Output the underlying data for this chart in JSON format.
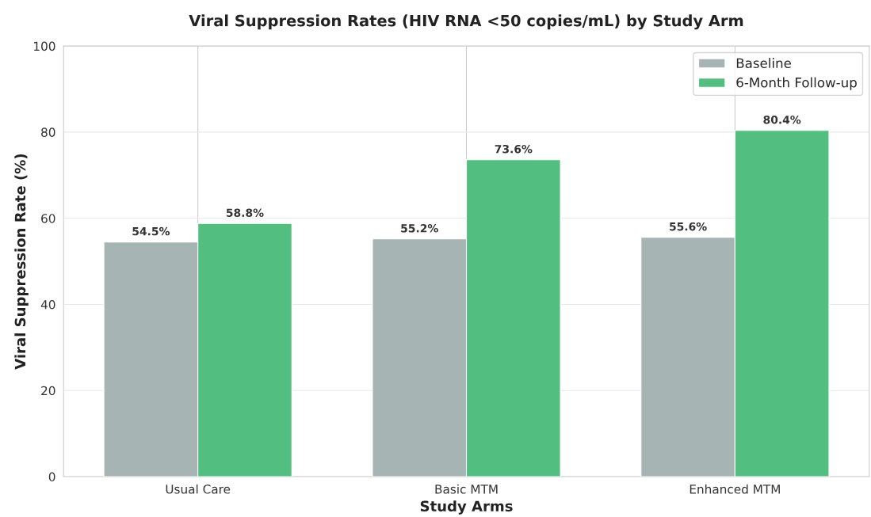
{
  "chart_data": {
    "type": "bar",
    "title": "Viral Suppression Rates (HIV RNA <50 copies/mL) by Study Arm",
    "xlabel": "Study Arms",
    "ylabel": "Viral Suppression Rate (%)",
    "categories": [
      "Usual Care",
      "Basic MTM",
      "Enhanced MTM"
    ],
    "series": [
      {
        "name": "Baseline",
        "color": "#a7b4b4",
        "values": [
          54.5,
          55.2,
          55.6
        ],
        "value_labels": [
          "54.5%",
          "55.2%",
          "55.6%"
        ]
      },
      {
        "name": "6-Month Follow-up",
        "color": "#52be80",
        "values": [
          58.8,
          73.6,
          80.4
        ],
        "value_labels": [
          "58.8%",
          "73.6%",
          "80.4%"
        ]
      }
    ],
    "ylim": [
      0,
      100
    ],
    "yticks": [
      0,
      20,
      40,
      60,
      80,
      100
    ],
    "grid": true,
    "legend": "top right"
  }
}
